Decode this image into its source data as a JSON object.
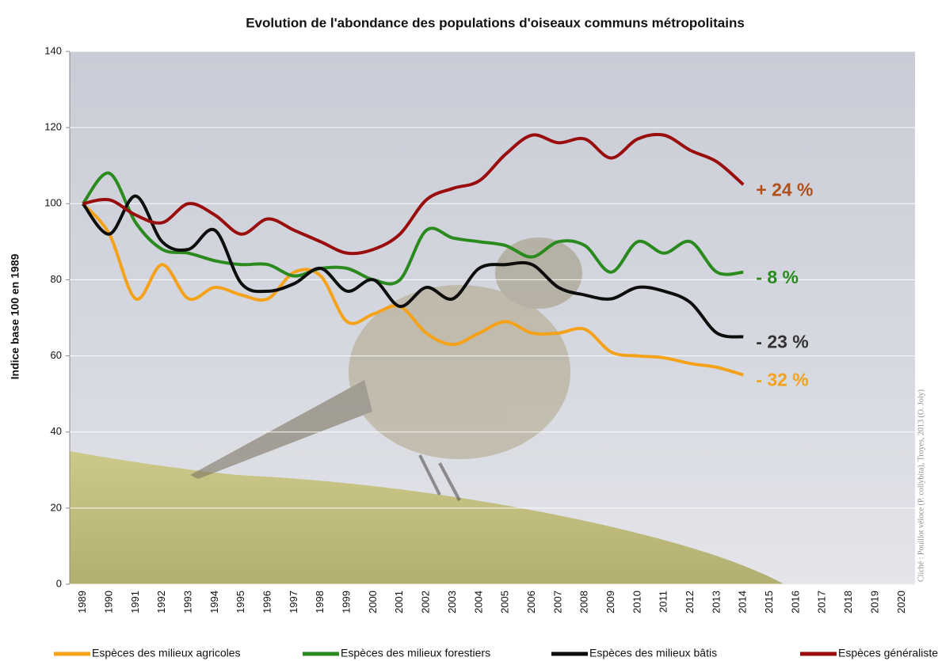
{
  "chart_data": {
    "type": "line",
    "title": "Evolution de l'abondance des populations d'oiseaux communs métropolitains",
    "y_label": "Indice base 100  en 1989",
    "credit": "Cliché : Pouillot véloce (P. collybita), Troyes, 2013 (O. Joly)",
    "categories": [
      "1989",
      "1990",
      "1991",
      "1992",
      "1993",
      "1994",
      "1995",
      "1996",
      "1997",
      "1998",
      "1999",
      "2000",
      "2001",
      "2002",
      "2003",
      "2004",
      "2005",
      "2006",
      "2007",
      "2008",
      "2009",
      "2010",
      "2011",
      "2012",
      "2013",
      "2014",
      "2015",
      "2016",
      "2017",
      "2018",
      "2019",
      "2020"
    ],
    "ylim": [
      0,
      140
    ],
    "yticks": [
      0,
      20,
      40,
      60,
      80,
      100,
      120,
      140
    ],
    "grid": true,
    "series": [
      {
        "name": "Espèces des milieux agricoles",
        "color": "#f5a21b",
        "values": [
          100,
          92,
          75,
          84,
          75,
          78,
          76,
          75,
          82,
          81,
          69,
          71,
          73,
          66,
          63,
          66,
          69,
          66,
          66,
          67,
          61,
          60,
          59.5,
          58,
          57,
          55,
          null,
          null,
          null,
          null,
          null,
          null
        ]
      },
      {
        "name": "Espèces des milieux forestiers",
        "color": "#2a8a1e",
        "values": [
          100,
          108,
          95,
          88,
          87,
          85,
          84,
          84,
          81,
          83,
          83,
          80,
          80,
          93,
          91,
          90,
          89,
          86,
          90,
          89,
          82,
          90,
          87,
          90,
          82,
          82,
          null,
          null,
          null,
          null,
          null,
          null
        ]
      },
      {
        "name": "Espèces des milieux bâtis",
        "color": "#0d0d0d",
        "values": [
          100,
          92,
          102,
          90,
          88,
          93,
          79,
          77,
          79,
          83,
          77,
          80,
          73,
          78,
          75,
          83,
          84,
          84,
          78,
          76,
          75,
          78,
          77,
          74,
          66,
          65,
          null,
          null,
          null,
          null,
          null,
          null
        ]
      },
      {
        "name": "Espèces généralistes",
        "color": "#990d0d",
        "values": [
          100,
          101,
          97,
          95,
          100,
          97,
          92,
          96,
          93,
          90,
          87,
          88,
          92,
          101,
          104,
          106,
          113,
          118,
          116,
          117,
          112,
          117,
          118,
          114,
          111,
          105,
          null,
          null,
          null,
          null,
          null,
          null
        ]
      }
    ],
    "annotations": [
      {
        "text": "- 32 %",
        "color": "#f5a21b"
      },
      {
        "text": "- 8 %",
        "color": "#2a8a1e"
      },
      {
        "text": "- 23 %",
        "color": "#333333"
      },
      {
        "text": "+ 24 %",
        "color": "#b0501a"
      }
    ]
  }
}
